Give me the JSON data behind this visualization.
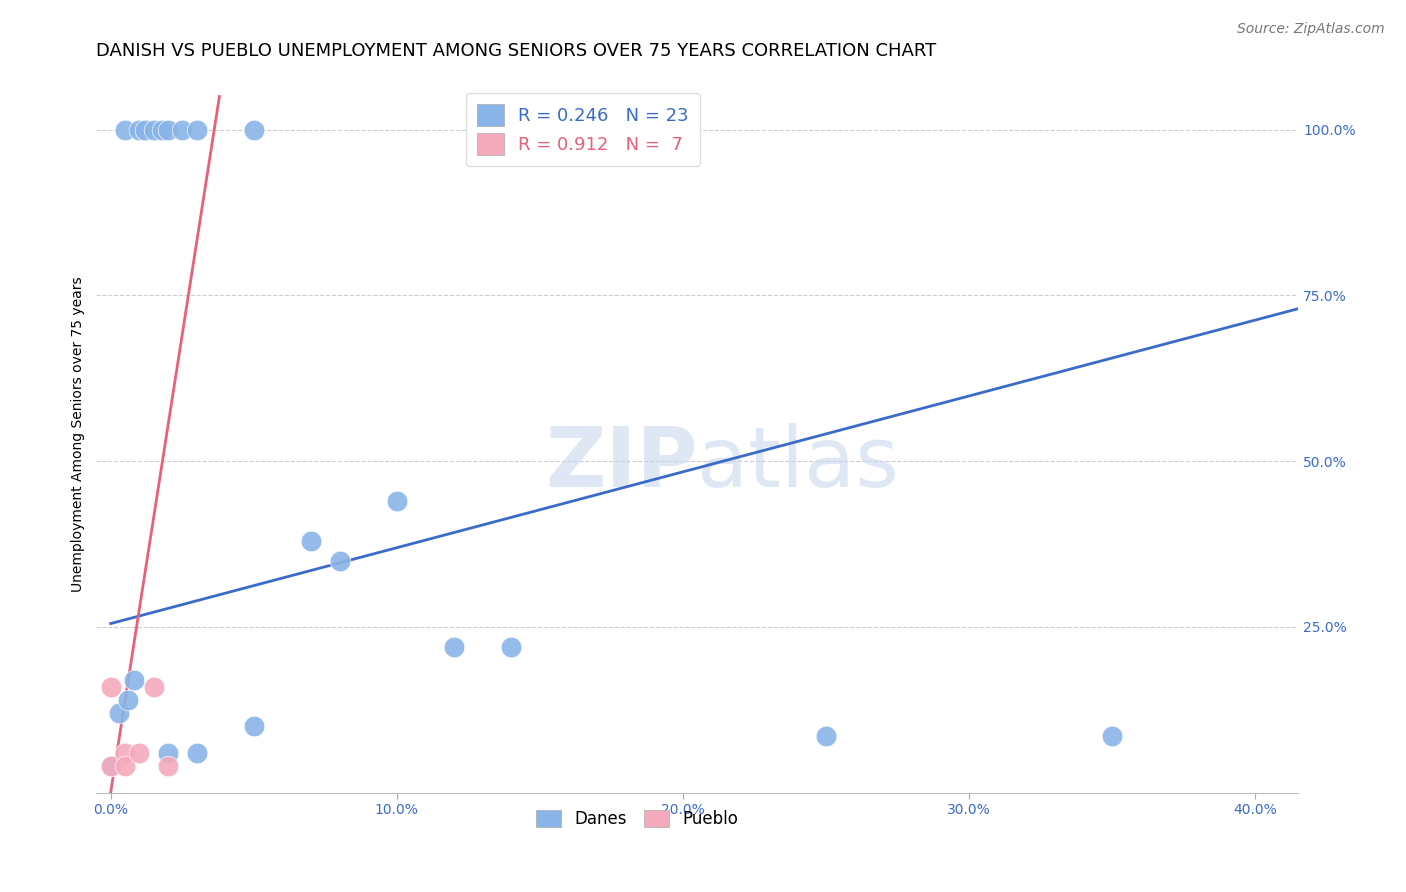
{
  "title": "DANISH VS PUEBLO UNEMPLOYMENT AMONG SENIORS OVER 75 YEARS CORRELATION CHART",
  "source": "Source: ZipAtlas.com",
  "ylabel_label": "Unemployment Among Seniors over 75 years",
  "x_ticklabels": [
    "0.0%",
    "",
    "10.0%",
    "",
    "20.0%",
    "",
    "30.0%",
    "",
    "40.0%"
  ],
  "x_ticks": [
    0.0,
    0.05,
    0.1,
    0.15,
    0.2,
    0.25,
    0.3,
    0.35,
    0.4
  ],
  "y_ticklabels": [
    "100.0%",
    "75.0%",
    "50.0%",
    "25.0%"
  ],
  "y_ticks": [
    1.0,
    0.75,
    0.5,
    0.25
  ],
  "xlim": [
    -0.005,
    0.415
  ],
  "ylim": [
    0.0,
    1.08
  ],
  "danes_color": "#89B4E8",
  "pueblo_color": "#F4AABC",
  "danes_line_color": "#3A6BC8",
  "pueblo_line_color": "#E8607A",
  "danes_R": 0.246,
  "danes_N": 23,
  "pueblo_R": 0.912,
  "pueblo_N": 7,
  "background_color": "#FFFFFF",
  "grid_color": "#CCCCCC",
  "watermark_zip": "ZIP",
  "watermark_atlas": "atlas",
  "danes_points_x": [
    0.005,
    0.01,
    0.012,
    0.015,
    0.018,
    0.02,
    0.025,
    0.03,
    0.05,
    0.07,
    0.08,
    0.1,
    0.12,
    0.14,
    0.0,
    0.003,
    0.006,
    0.008,
    0.02,
    0.03,
    0.05,
    0.25,
    0.35
  ],
  "danes_points_y": [
    1.0,
    1.0,
    1.0,
    1.0,
    1.0,
    1.0,
    1.0,
    1.0,
    1.0,
    0.38,
    0.35,
    0.44,
    0.22,
    0.22,
    0.04,
    0.12,
    0.14,
    0.17,
    0.06,
    0.06,
    0.1,
    0.085,
    0.085
  ],
  "pueblo_points_x": [
    0.0,
    0.0,
    0.005,
    0.005,
    0.01,
    0.015,
    0.02
  ],
  "pueblo_points_y": [
    0.04,
    0.16,
    0.06,
    0.04,
    0.06,
    0.16,
    0.04
  ],
  "danes_line_x": [
    0.0,
    0.415
  ],
  "danes_line_y": [
    0.255,
    0.73
  ],
  "pueblo_line_x": [
    0.0,
    0.038
  ],
  "pueblo_line_y": [
    0.0,
    1.05
  ],
  "legend_danes_label": "Danes",
  "legend_pueblo_label": "Pueblo",
  "title_fontsize": 13,
  "axis_label_fontsize": 10,
  "tick_label_fontsize": 10,
  "legend_fontsize": 13,
  "source_fontsize": 10
}
